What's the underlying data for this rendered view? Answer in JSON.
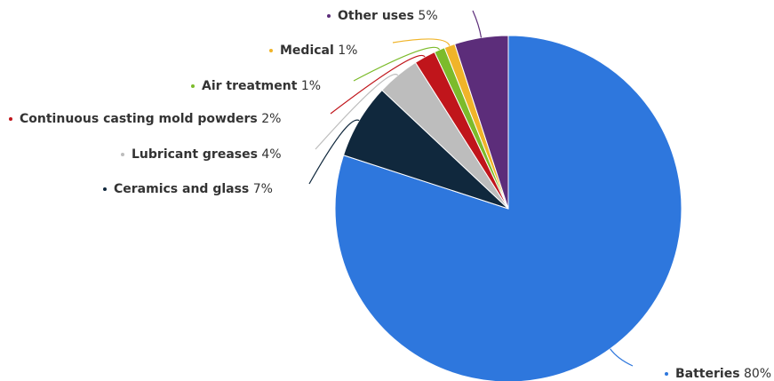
{
  "chart_data": {
    "type": "pie",
    "categories": [
      "Batteries",
      "Ceramics and glass",
      "Lubricant greases",
      "Continuous casting mold powders",
      "Air treatment",
      "Medical",
      "Other uses"
    ],
    "values": [
      80,
      7,
      4,
      2,
      1,
      1,
      5
    ],
    "value_labels": [
      "80%",
      "7%",
      "4%",
      "2%",
      "1%",
      "1%",
      "5%"
    ],
    "colors": [
      "#2e77dd",
      "#10283d",
      "#bdbdbd",
      "#c0151b",
      "#7cbb2b",
      "#f0b429",
      "#5c2d7a"
    ]
  }
}
